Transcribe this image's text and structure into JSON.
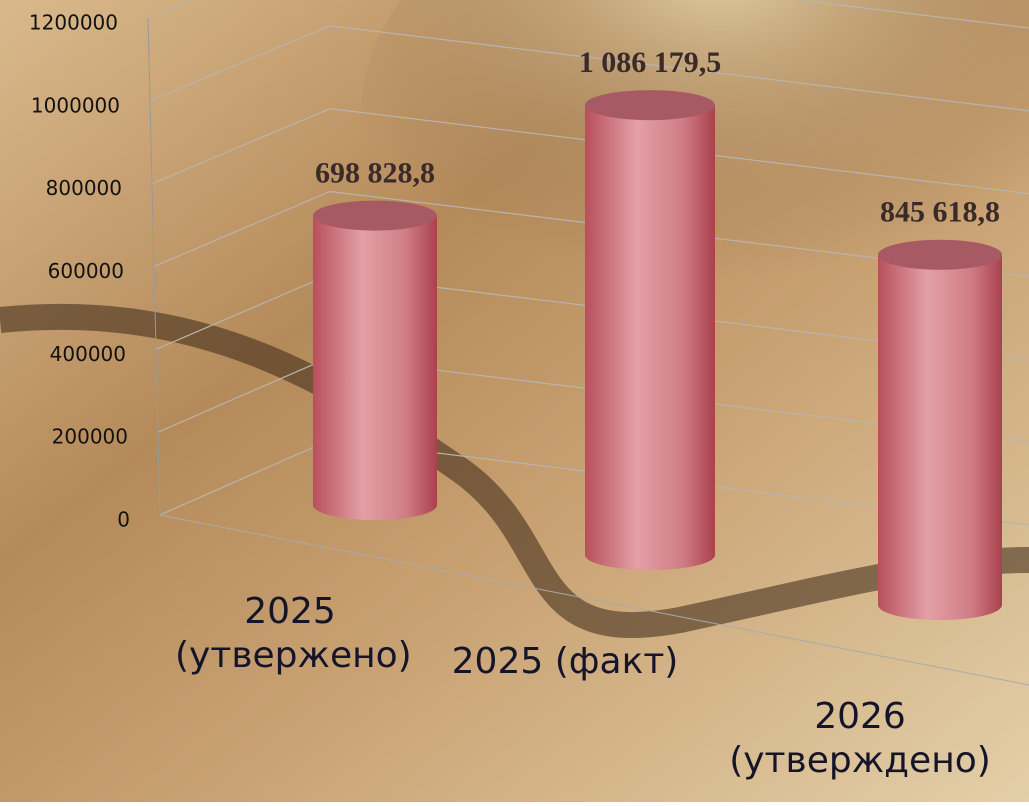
{
  "chart_data": {
    "type": "bar",
    "categories": [
      "2025 (утвержено)",
      "2025 (факт)",
      "2026 (утверждено)"
    ],
    "values": [
      698828.8,
      1086179.5,
      845618.8
    ],
    "value_labels": [
      "698 828,8",
      "1 086 179,5",
      "845 618,8"
    ],
    "color": "#c9646e",
    "ylim": [
      0,
      1200000
    ],
    "yticks": [
      0,
      200000,
      400000,
      600000,
      800000,
      1000000,
      1200000
    ],
    "grid": true
  }
}
